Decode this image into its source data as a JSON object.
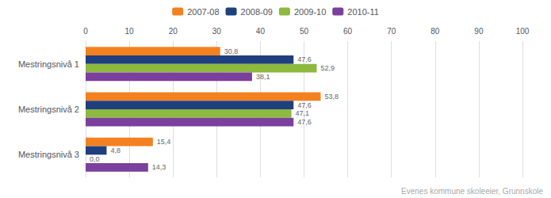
{
  "chart_data": {
    "type": "bar",
    "orientation": "horizontal",
    "categories": [
      "Mestringsnivå 1",
      "Mestringsnivå 2",
      "Mestringsnivå 3"
    ],
    "series": [
      {
        "name": "2007-08",
        "color": "#F4811F",
        "values": [
          30.8,
          53.8,
          15.4
        ],
        "value_labels": [
          "30,8",
          "53,8",
          "15,4"
        ]
      },
      {
        "name": "2008-09",
        "color": "#1F3F7F",
        "values": [
          47.6,
          47.6,
          4.8
        ],
        "value_labels": [
          "47,6",
          "47,6",
          "4,8"
        ]
      },
      {
        "name": "2009-10",
        "color": "#8DB93E",
        "values": [
          52.9,
          47.1,
          0.0
        ],
        "value_labels": [
          "52,9",
          "47,1",
          "0,0"
        ]
      },
      {
        "name": "2010-11",
        "color": "#7B3F9E",
        "values": [
          38.1,
          47.6,
          14.3
        ],
        "value_labels": [
          "38,1",
          "47,6",
          "14,3"
        ]
      }
    ],
    "xlim": [
      0,
      100
    ],
    "xticks": [
      0,
      10,
      20,
      30,
      40,
      50,
      60,
      70,
      80,
      90,
      100
    ],
    "grid": true,
    "legend": "top",
    "data_labels": true,
    "annotations": [
      "Evenes kommune skoleeier, Grunnskole"
    ]
  }
}
